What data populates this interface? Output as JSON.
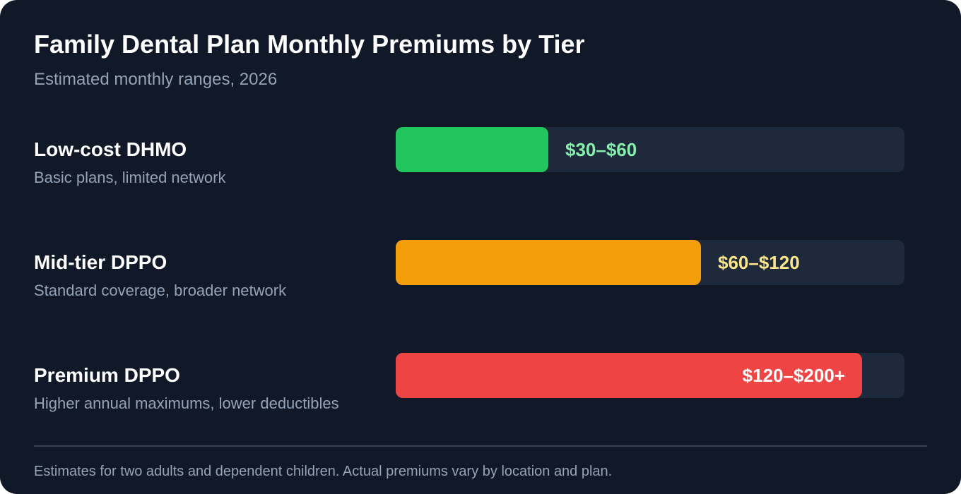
{
  "title": "Family Dental Plan Monthly Premiums by Tier",
  "subtitle": "Estimated monthly ranges, 2026",
  "footnote": "Estimates for two adults and dependent children. Actual premiums vary by location and plan.",
  "colors": {
    "background": "#111827",
    "track": "#1e293b",
    "text_primary": "#ffffff",
    "text_secondary": "#94a3b8"
  },
  "chart_data": {
    "type": "bar",
    "orientation": "horizontal",
    "title": "Family Dental Plan Monthly Premiums by Tier",
    "subtitle": "Estimated monthly ranges, 2026",
    "categories": [
      "Low-cost DHMO",
      "Mid-tier DPPO",
      "Premium DPPO"
    ],
    "descriptions": [
      "Basic plans, limited network",
      "Standard coverage, broader network",
      "Higher annual maximums, lower deductibles"
    ],
    "value_labels": [
      "$30–$60",
      "$60–$120",
      "$120–$200+"
    ],
    "ranges": [
      [
        30,
        60
      ],
      [
        60,
        120
      ],
      [
        120,
        200
      ]
    ],
    "fill_fractions": [
      0.3,
      0.6,
      0.917
    ],
    "bar_colors": [
      "#22c55e",
      "#f59e0b",
      "#ef4444"
    ],
    "label_colors": [
      "#86efac",
      "#fde68a",
      "#ffffff"
    ],
    "label_placement": [
      "outside",
      "outside",
      "inside"
    ],
    "grid": false,
    "legend": "none"
  }
}
